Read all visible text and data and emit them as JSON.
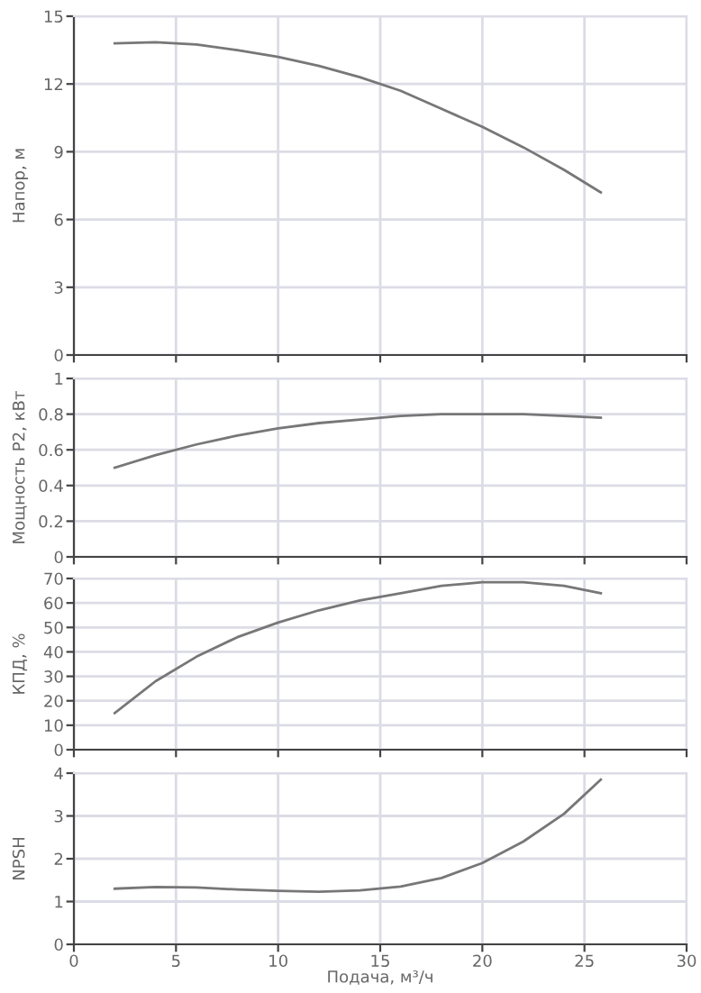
{
  "chart_data": [
    {
      "type": "line",
      "ylabel": "Напор, м",
      "x": [
        2,
        4,
        6,
        8,
        10,
        12,
        14,
        16,
        18,
        20,
        22,
        24,
        25.8
      ],
      "series": [
        {
          "color": "#777777",
          "values": [
            13.8,
            13.85,
            13.75,
            13.5,
            13.2,
            12.8,
            12.3,
            11.7,
            10.9,
            10.1,
            9.2,
            8.2,
            7.2
          ]
        }
      ],
      "xlim": [
        0,
        30
      ],
      "xticks": [
        0,
        5,
        10,
        15,
        20,
        25,
        30
      ],
      "ylim": [
        0,
        15
      ],
      "yticks": [
        0,
        3,
        6,
        9,
        12,
        15
      ],
      "grid": true,
      "tick_labels": "y"
    },
    {
      "type": "line",
      "ylabel": "Мощность P2, кВт",
      "x": [
        2,
        4,
        6,
        8,
        10,
        12,
        14,
        16,
        18,
        20,
        22,
        24,
        25.8
      ],
      "series": [
        {
          "color": "#777777",
          "values": [
            0.5,
            0.57,
            0.63,
            0.68,
            0.72,
            0.75,
            0.77,
            0.79,
            0.8,
            0.8,
            0.8,
            0.79,
            0.78
          ]
        }
      ],
      "xlim": [
        0,
        30
      ],
      "xticks": [
        0,
        5,
        10,
        15,
        20,
        25,
        30
      ],
      "ylim": [
        0,
        1
      ],
      "yticks": [
        0,
        0.2,
        0.4,
        0.6,
        0.8,
        1
      ],
      "grid": true,
      "tick_labels": "y"
    },
    {
      "type": "line",
      "ylabel": "КПД, %",
      "x": [
        2,
        4,
        6,
        8,
        10,
        12,
        14,
        16,
        18,
        20,
        22,
        24,
        25.8
      ],
      "series": [
        {
          "color": "#777777",
          "values": [
            15,
            28,
            38,
            46,
            52,
            57,
            61,
            64,
            67,
            68.5,
            68.5,
            67,
            64
          ]
        }
      ],
      "xlim": [
        0,
        30
      ],
      "xticks": [
        0,
        5,
        10,
        15,
        20,
        25,
        30
      ],
      "ylim": [
        0,
        70
      ],
      "yticks": [
        0,
        10,
        20,
        30,
        40,
        50,
        60,
        70
      ],
      "grid": true,
      "tick_labels": "y"
    },
    {
      "type": "line",
      "ylabel": "NPSH",
      "xlabel": "Подача, м³/ч",
      "x": [
        2,
        4,
        6,
        8,
        10,
        12,
        14,
        16,
        18,
        20,
        22,
        24,
        25.8
      ],
      "series": [
        {
          "color": "#777777",
          "values": [
            1.3,
            1.34,
            1.33,
            1.28,
            1.25,
            1.23,
            1.26,
            1.35,
            1.55,
            1.9,
            2.4,
            3.05,
            3.85
          ]
        }
      ],
      "xlim": [
        0,
        30
      ],
      "xticks": [
        0,
        5,
        10,
        15,
        20,
        25,
        30
      ],
      "ylim": [
        0,
        4
      ],
      "yticks": [
        0,
        1,
        2,
        3,
        4
      ],
      "grid": true
    }
  ]
}
